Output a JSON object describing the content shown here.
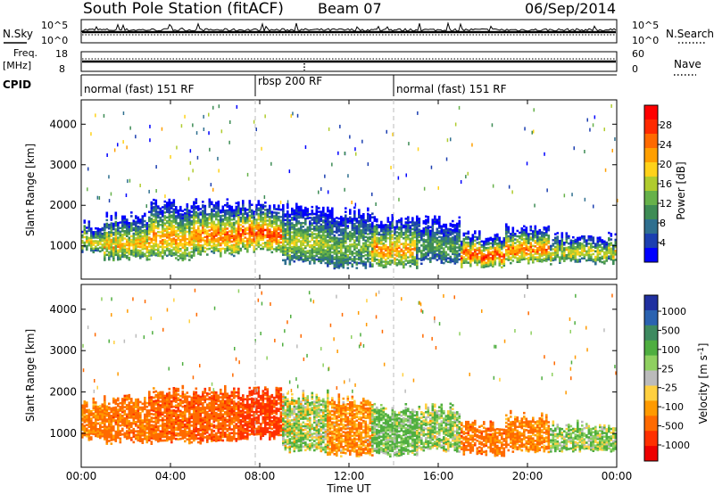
{
  "header": {
    "station": "South Pole Station (fitACF)",
    "beam": "Beam 07",
    "date": "06/Sep/2014"
  },
  "top_strip": {
    "nsky_label": "N.Sky",
    "nsearch_label": "N.Search",
    "nsky_ticks": [
      "10^5",
      "10^0"
    ],
    "nsearch_ticks": [
      "10^5",
      "10^0"
    ],
    "freq_label": "Freq.",
    "freq_unit": "[MHz]",
    "freq_ticks": [
      "18",
      "8"
    ],
    "nave_label": "Nave",
    "nave_ticks": [
      "60",
      "0"
    ],
    "cpid_label": "CPID",
    "cpid_segments": [
      {
        "label": "normal (fast) 151 RF",
        "start_hour": 0,
        "end_hour": 7.8
      },
      {
        "label": "rbsp 200 RF",
        "start_hour": 7.8,
        "end_hour": 14.0
      },
      {
        "label": "normal (fast) 151 RF",
        "start_hour": 14.0,
        "end_hour": 24
      }
    ]
  },
  "chart_data": [
    {
      "type": "heatmap",
      "panel": "power",
      "ylabel": "Slant Range [km]",
      "xlim": [
        0,
        24
      ],
      "ylim": [
        180,
        4600
      ],
      "yticks": [
        1000,
        2000,
        3000,
        4000
      ],
      "colorbar": {
        "label": "Power [dB]",
        "ticks": [
          "4",
          "8",
          "12",
          "16",
          "20",
          "24",
          "28"
        ],
        "range": [
          0,
          30
        ],
        "colors": [
          "#0000ff",
          "#1c3fb0",
          "#2f6f8f",
          "#3e8c55",
          "#66b14a",
          "#b0cc2e",
          "#ffd21a",
          "#ff9f00",
          "#ff6a00",
          "#ff2a00",
          "#ff0000"
        ]
      },
      "bands": [
        {
          "x": [
            0.0,
            1.0
          ],
          "y": [
            900,
            1500
          ],
          "value": 18
        },
        {
          "x": [
            1.0,
            3.0
          ],
          "y": [
            700,
            1700
          ],
          "value": 20
        },
        {
          "x": [
            3.0,
            5.0
          ],
          "y": [
            700,
            2000
          ],
          "value": 22
        },
        {
          "x": [
            5.0,
            7.0
          ],
          "y": [
            800,
            2000
          ],
          "value": 24
        },
        {
          "x": [
            7.0,
            9.0
          ],
          "y": [
            900,
            2000
          ],
          "value": 26
        },
        {
          "x": [
            9.0,
            11.0
          ],
          "y": [
            600,
            1900
          ],
          "value": 16
        },
        {
          "x": [
            11.0,
            13.0
          ],
          "y": [
            500,
            1800
          ],
          "value": 14
        },
        {
          "x": [
            13.0,
            15.0
          ],
          "y": [
            500,
            1600
          ],
          "value": 22
        },
        {
          "x": [
            15.0,
            17.0
          ],
          "y": [
            600,
            1600
          ],
          "value": 12
        },
        {
          "x": [
            17.0,
            19.0
          ],
          "y": [
            500,
            1200
          ],
          "value": 26
        },
        {
          "x": [
            19.0,
            21.0
          ],
          "y": [
            600,
            1400
          ],
          "value": 24
        },
        {
          "x": [
            21.0,
            24.0
          ],
          "y": [
            600,
            1200
          ],
          "value": 18
        }
      ]
    },
    {
      "type": "heatmap",
      "panel": "velocity",
      "ylabel": "Slant Range [km]",
      "xlabel": "Time UT",
      "xlim": [
        0,
        24
      ],
      "ylim": [
        180,
        4600
      ],
      "yticks": [
        1000,
        2000,
        3000,
        4000
      ],
      "xticks": [
        "00:00",
        "04:00",
        "08:00",
        "12:00",
        "16:00",
        "20:00",
        "00:00"
      ],
      "colorbar": {
        "label": "Velocity [m s^-1]",
        "ticks": [
          "1000",
          "500",
          "100",
          "25",
          "-25",
          "-100",
          "-500",
          "-1000"
        ],
        "colors": [
          "#2030a0",
          "#2a62b0",
          "#3e8a60",
          "#4fae40",
          "#8fd060",
          "#bbbbbb",
          "#ffd040",
          "#ff9a00",
          "#ff6a00",
          "#ff3000",
          "#ee0000"
        ]
      },
      "bands": [
        {
          "x": [
            0.0,
            1.0
          ],
          "y": [
            900,
            1700
          ],
          "value": -120
        },
        {
          "x": [
            1.0,
            3.0
          ],
          "y": [
            800,
            1800
          ],
          "value": -150
        },
        {
          "x": [
            3.0,
            5.0
          ],
          "y": [
            800,
            2000
          ],
          "value": -180
        },
        {
          "x": [
            5.0,
            7.0
          ],
          "y": [
            800,
            2000
          ],
          "value": -200
        },
        {
          "x": [
            7.0,
            9.0
          ],
          "y": [
            900,
            2000
          ],
          "value": -300
        },
        {
          "x": [
            9.0,
            11.0
          ],
          "y": [
            600,
            1900
          ],
          "value": 60
        },
        {
          "x": [
            11.0,
            13.0
          ],
          "y": [
            500,
            1800
          ],
          "value": -80
        },
        {
          "x": [
            13.0,
            15.0
          ],
          "y": [
            500,
            1600
          ],
          "value": 120
        },
        {
          "x": [
            15.0,
            17.0
          ],
          "y": [
            600,
            1600
          ],
          "value": 80
        },
        {
          "x": [
            17.0,
            19.0
          ],
          "y": [
            500,
            1200
          ],
          "value": -150
        },
        {
          "x": [
            19.0,
            21.0
          ],
          "y": [
            600,
            1400
          ],
          "value": -120
        },
        {
          "x": [
            21.0,
            24.0
          ],
          "y": [
            600,
            1200
          ],
          "value": 90
        }
      ]
    }
  ]
}
